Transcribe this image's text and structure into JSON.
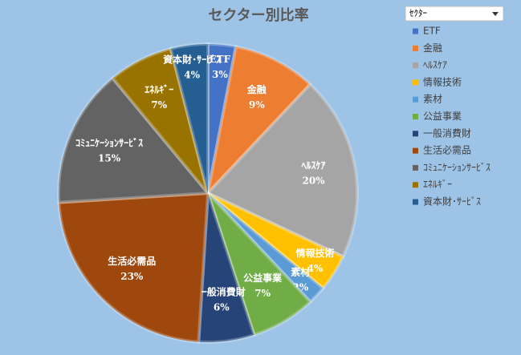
{
  "field_button": "ｾｸﾀｰ",
  "chart_data": {
    "type": "pie",
    "title": "セクター別比率",
    "categories": [
      "ETF",
      "金融",
      "ﾍﾙｽｹｱ",
      "情報技術",
      "素材",
      "公益事業",
      "一般消費財",
      "生活必需品",
      "ｺﾐｭﾆｹｰｼｮﾝｻｰﾋﾞｽ",
      "ｴﾈﾙｷﾞｰ",
      "資本財･ｻｰﾋﾞｽ"
    ],
    "values": [
      3,
      9,
      20,
      4,
      2,
      7,
      6,
      23,
      15,
      7,
      4
    ],
    "value_labels": [
      "3%",
      "9%",
      "20%",
      "4%",
      "2%",
      "7%",
      "6%",
      "23%",
      "15%",
      "7%",
      "4%"
    ],
    "colors": [
      "#4472c4",
      "#ed7d31",
      "#a5a5a5",
      "#ffc000",
      "#5b9bd5",
      "#70ad47",
      "#264478",
      "#9e480e",
      "#636363",
      "#997300",
      "#255e91"
    ],
    "legend": "right"
  }
}
